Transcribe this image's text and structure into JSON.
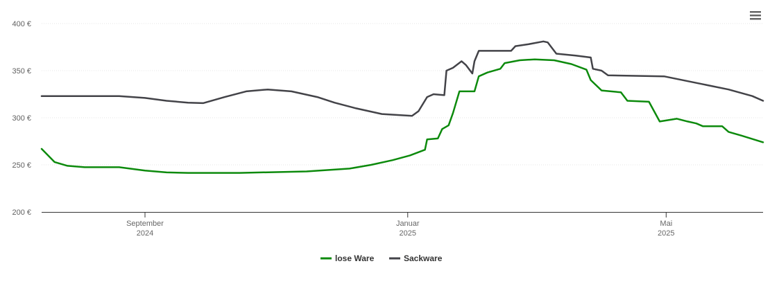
{
  "chart_data": {
    "type": "line",
    "title": "",
    "xlabel": "",
    "ylabel": "",
    "ylim": [
      200,
      400
    ],
    "y_ticks": [
      {
        "value": 200,
        "label": "200 €"
      },
      {
        "value": 250,
        "label": "250 €"
      },
      {
        "value": 300,
        "label": "300 €"
      },
      {
        "value": 350,
        "label": "350 €"
      },
      {
        "value": 400,
        "label": "400 €"
      }
    ],
    "xlim": [
      "2024-07-15",
      "2025-06-15"
    ],
    "x_ticks": [
      {
        "date": "2024-09-01",
        "month": "September",
        "year": "2024"
      },
      {
        "date": "2025-01-01",
        "month": "Januar",
        "year": "2025"
      },
      {
        "date": "2025-05-01",
        "month": "Mai",
        "year": "2025"
      }
    ],
    "grid": true,
    "legend_position": "bottom-center",
    "series": [
      {
        "name": "lose Ware",
        "color": "#0c8a0c",
        "points": [
          [
            "2024-07-15",
            267
          ],
          [
            "2024-07-21",
            253
          ],
          [
            "2024-07-27",
            249
          ],
          [
            "2024-08-04",
            247.5
          ],
          [
            "2024-08-20",
            247.5
          ],
          [
            "2024-09-01",
            244
          ],
          [
            "2024-09-11",
            242
          ],
          [
            "2024-09-21",
            241.5
          ],
          [
            "2024-10-15",
            241.5
          ],
          [
            "2024-11-15",
            243
          ],
          [
            "2024-12-05",
            246
          ],
          [
            "2024-12-15",
            250
          ],
          [
            "2024-12-25",
            255
          ],
          [
            "2025-01-02",
            260
          ],
          [
            "2025-01-09",
            266
          ],
          [
            "2025-01-10",
            277
          ],
          [
            "2025-01-15",
            278
          ],
          [
            "2025-01-17",
            288
          ],
          [
            "2025-01-20",
            292
          ],
          [
            "2025-01-22",
            305
          ],
          [
            "2025-01-25",
            328
          ],
          [
            "2025-02-01",
            328
          ],
          [
            "2025-02-03",
            344
          ],
          [
            "2025-02-07",
            348
          ],
          [
            "2025-02-13",
            352
          ],
          [
            "2025-02-15",
            358
          ],
          [
            "2025-02-22",
            361
          ],
          [
            "2025-03-01",
            362
          ],
          [
            "2025-03-10",
            361
          ],
          [
            "2025-03-18",
            357
          ],
          [
            "2025-03-25",
            351
          ],
          [
            "2025-03-27",
            340
          ],
          [
            "2025-04-01",
            329
          ],
          [
            "2025-04-10",
            327
          ],
          [
            "2025-04-13",
            318
          ],
          [
            "2025-04-23",
            317
          ],
          [
            "2025-04-28",
            296
          ],
          [
            "2025-05-06",
            299
          ],
          [
            "2025-05-11",
            296
          ],
          [
            "2025-05-15",
            294
          ],
          [
            "2025-05-18",
            291
          ],
          [
            "2025-05-27",
            291
          ],
          [
            "2025-05-30",
            285
          ],
          [
            "2025-06-05",
            281
          ],
          [
            "2025-06-15",
            274
          ]
        ]
      },
      {
        "name": "Sackware",
        "color": "#434348",
        "points": [
          [
            "2024-07-15",
            323
          ],
          [
            "2024-08-20",
            323
          ],
          [
            "2024-09-01",
            321
          ],
          [
            "2024-09-11",
            318
          ],
          [
            "2024-09-21",
            316
          ],
          [
            "2024-09-28",
            315.5
          ],
          [
            "2024-10-08",
            322
          ],
          [
            "2024-10-18",
            328
          ],
          [
            "2024-10-28",
            330
          ],
          [
            "2024-11-08",
            328
          ],
          [
            "2024-11-20",
            322
          ],
          [
            "2024-11-28",
            316
          ],
          [
            "2024-12-08",
            310
          ],
          [
            "2024-12-20",
            304
          ],
          [
            "2025-01-03",
            302
          ],
          [
            "2025-01-06",
            307
          ],
          [
            "2025-01-10",
            322
          ],
          [
            "2025-01-13",
            325
          ],
          [
            "2025-01-18",
            324
          ],
          [
            "2025-01-19",
            350
          ],
          [
            "2025-01-22",
            353
          ],
          [
            "2025-01-26",
            360
          ],
          [
            "2025-01-28",
            356
          ],
          [
            "2025-01-31",
            347
          ],
          [
            "2025-02-01",
            360
          ],
          [
            "2025-02-03",
            371
          ],
          [
            "2025-02-18",
            371
          ],
          [
            "2025-02-20",
            376
          ],
          [
            "2025-02-26",
            378
          ],
          [
            "2025-03-05",
            381
          ],
          [
            "2025-03-07",
            380
          ],
          [
            "2025-03-11",
            368
          ],
          [
            "2025-03-20",
            366
          ],
          [
            "2025-03-27",
            364
          ],
          [
            "2025-03-28",
            352
          ],
          [
            "2025-04-01",
            350
          ],
          [
            "2025-04-04",
            345
          ],
          [
            "2025-04-30",
            344
          ],
          [
            "2025-05-15",
            337
          ],
          [
            "2025-05-30",
            330
          ],
          [
            "2025-06-10",
            323
          ],
          [
            "2025-06-15",
            318
          ]
        ]
      }
    ]
  },
  "menu": {
    "icon": "hamburger-menu-icon"
  }
}
